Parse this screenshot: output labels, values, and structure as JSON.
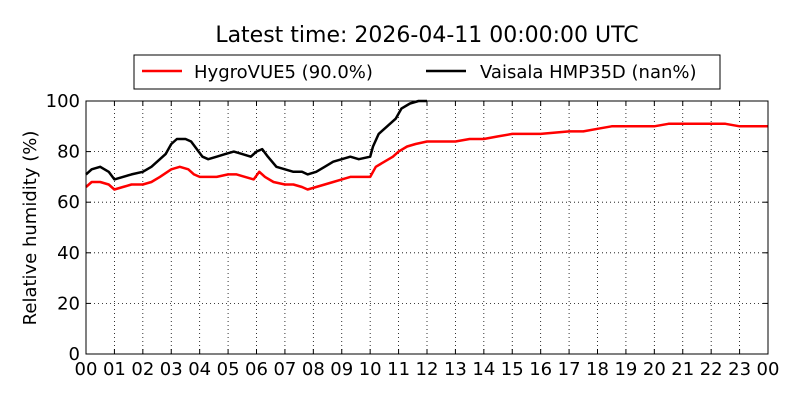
{
  "chart_data": {
    "type": "line",
    "title": "Latest time: 2026-04-11 00:00:00 UTC",
    "ylabel": "Relative humidity (%)",
    "xlabel": "",
    "xlim": [
      0,
      24
    ],
    "ylim": [
      0,
      100
    ],
    "x_ticks": [
      "00",
      "01",
      "02",
      "03",
      "04",
      "05",
      "06",
      "07",
      "08",
      "09",
      "10",
      "11",
      "12",
      "13",
      "14",
      "15",
      "16",
      "17",
      "18",
      "19",
      "20",
      "21",
      "22",
      "23",
      "00"
    ],
    "y_ticks": [
      0,
      20,
      40,
      60,
      80,
      100
    ],
    "grid": true,
    "legend_position": "top-center",
    "series": [
      {
        "name": "HygroVUE5 (90.0%)",
        "color": "#ff0000",
        "points": [
          [
            0,
            66
          ],
          [
            0.2,
            68
          ],
          [
            0.5,
            68
          ],
          [
            0.8,
            67
          ],
          [
            1.0,
            65
          ],
          [
            1.3,
            66
          ],
          [
            1.6,
            67
          ],
          [
            2.0,
            67
          ],
          [
            2.3,
            68
          ],
          [
            2.6,
            70
          ],
          [
            3.0,
            73
          ],
          [
            3.3,
            74
          ],
          [
            3.6,
            73
          ],
          [
            3.8,
            71
          ],
          [
            4.0,
            70
          ],
          [
            4.3,
            70
          ],
          [
            4.6,
            70
          ],
          [
            5.0,
            71
          ],
          [
            5.3,
            71
          ],
          [
            5.6,
            70
          ],
          [
            5.9,
            69
          ],
          [
            6.1,
            72
          ],
          [
            6.3,
            70
          ],
          [
            6.6,
            68
          ],
          [
            7.0,
            67
          ],
          [
            7.3,
            67
          ],
          [
            7.6,
            66
          ],
          [
            7.8,
            65
          ],
          [
            8.1,
            66
          ],
          [
            8.4,
            67
          ],
          [
            8.7,
            68
          ],
          [
            9.0,
            69
          ],
          [
            9.3,
            70
          ],
          [
            9.6,
            70
          ],
          [
            10.0,
            70
          ],
          [
            10.2,
            74
          ],
          [
            10.5,
            76
          ],
          [
            10.8,
            78
          ],
          [
            11.0,
            80
          ],
          [
            11.3,
            82
          ],
          [
            11.6,
            83
          ],
          [
            12.0,
            84
          ],
          [
            12.5,
            84
          ],
          [
            13.0,
            84
          ],
          [
            13.5,
            85
          ],
          [
            14.0,
            85
          ],
          [
            14.5,
            86
          ],
          [
            15.0,
            87
          ],
          [
            16.0,
            87
          ],
          [
            17.0,
            88
          ],
          [
            17.5,
            88
          ],
          [
            18.0,
            89
          ],
          [
            18.5,
            90
          ],
          [
            19.0,
            90
          ],
          [
            20.0,
            90
          ],
          [
            20.5,
            91
          ],
          [
            21.0,
            91
          ],
          [
            22.0,
            91
          ],
          [
            22.5,
            91
          ],
          [
            23.0,
            90
          ],
          [
            24.0,
            90
          ]
        ]
      },
      {
        "name": "Vaisala HMP35D (nan%)",
        "color": "#000000",
        "points": [
          [
            0,
            71
          ],
          [
            0.2,
            73
          ],
          [
            0.5,
            74
          ],
          [
            0.8,
            72
          ],
          [
            1.0,
            69
          ],
          [
            1.3,
            70
          ],
          [
            1.6,
            71
          ],
          [
            2.0,
            72
          ],
          [
            2.3,
            74
          ],
          [
            2.6,
            77
          ],
          [
            2.8,
            79
          ],
          [
            3.0,
            83
          ],
          [
            3.2,
            85
          ],
          [
            3.5,
            85
          ],
          [
            3.7,
            84
          ],
          [
            3.9,
            81
          ],
          [
            4.1,
            78
          ],
          [
            4.3,
            77
          ],
          [
            4.6,
            78
          ],
          [
            4.9,
            79
          ],
          [
            5.2,
            80
          ],
          [
            5.5,
            79
          ],
          [
            5.8,
            78
          ],
          [
            6.0,
            80
          ],
          [
            6.2,
            81
          ],
          [
            6.4,
            78
          ],
          [
            6.7,
            74
          ],
          [
            7.0,
            73
          ],
          [
            7.3,
            72
          ],
          [
            7.6,
            72
          ],
          [
            7.8,
            71
          ],
          [
            8.1,
            72
          ],
          [
            8.4,
            74
          ],
          [
            8.7,
            76
          ],
          [
            9.0,
            77
          ],
          [
            9.3,
            78
          ],
          [
            9.6,
            77
          ],
          [
            10.0,
            78
          ],
          [
            10.1,
            82
          ],
          [
            10.3,
            87
          ],
          [
            10.6,
            90
          ],
          [
            10.9,
            93
          ],
          [
            11.1,
            97
          ],
          [
            11.4,
            99
          ],
          [
            11.7,
            100
          ],
          [
            12.0,
            100
          ]
        ]
      }
    ]
  }
}
